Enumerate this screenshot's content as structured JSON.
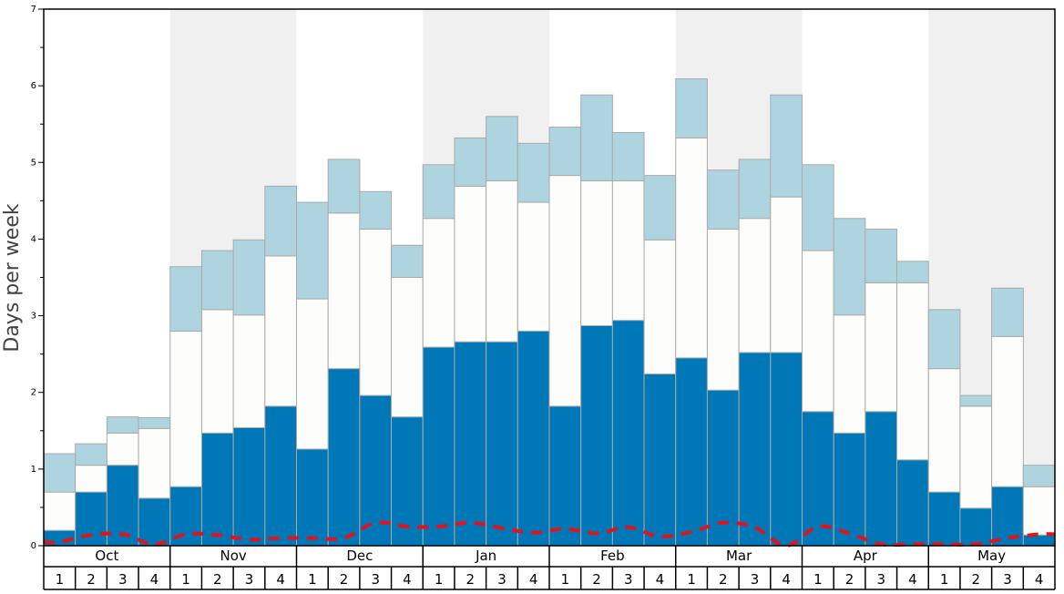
{
  "chart_data": {
    "type": "bar",
    "stacked": true,
    "title": "",
    "xlabel": "",
    "ylabel": "Days per week",
    "ylim": [
      0,
      7
    ],
    "y_ticks": [
      0,
      1,
      2,
      3,
      4,
      5,
      6,
      7
    ],
    "grid": false,
    "months": [
      "Oct",
      "Nov",
      "Dec",
      "Jan",
      "Feb",
      "Mar",
      "Apr",
      "May"
    ],
    "week_labels": [
      "1",
      "2",
      "3",
      "4"
    ],
    "categories": [
      "Oct 1",
      "Oct 2",
      "Oct 3",
      "Oct 4",
      "Nov 1",
      "Nov 2",
      "Nov 3",
      "Nov 4",
      "Dec 1",
      "Dec 2",
      "Dec 3",
      "Dec 4",
      "Jan 1",
      "Jan 2",
      "Jan 3",
      "Jan 4",
      "Feb 1",
      "Feb 2",
      "Feb 3",
      "Feb 4",
      "Mar 1",
      "Mar 2",
      "Mar 3",
      "Mar 4",
      "Apr 1",
      "Apr 2",
      "Apr 3",
      "Apr 4",
      "May 1",
      "May 2",
      "May 3",
      "May 4"
    ],
    "series": [
      {
        "color": "#0077b6",
        "values": [
          0.2,
          0.7,
          1.05,
          0.62,
          0.77,
          1.47,
          1.54,
          1.82,
          1.26,
          2.31,
          1.96,
          1.68,
          2.59,
          2.66,
          2.66,
          2.8,
          1.82,
          2.87,
          2.94,
          2.24,
          2.45,
          2.03,
          2.52,
          2.52,
          1.75,
          1.47,
          1.75,
          1.12,
          0.7,
          0.49,
          0.77,
          0.14
        ]
      },
      {
        "color": "#fdfdfb",
        "values": [
          0.5,
          0.35,
          0.42,
          0.91,
          2.03,
          1.61,
          1.47,
          1.96,
          1.96,
          2.03,
          2.17,
          1.82,
          1.68,
          2.03,
          2.1,
          1.68,
          3.01,
          1.89,
          1.82,
          1.75,
          2.87,
          2.1,
          1.75,
          2.03,
          2.1,
          1.54,
          1.68,
          2.31,
          1.61,
          1.33,
          1.96,
          0.63
        ]
      },
      {
        "color": "#aed4e0",
        "values": [
          0.5,
          0.28,
          0.21,
          0.14,
          0.84,
          0.77,
          0.98,
          0.91,
          1.26,
          0.7,
          0.49,
          0.42,
          0.7,
          0.63,
          0.84,
          0.77,
          0.63,
          1.12,
          0.63,
          0.84,
          0.77,
          0.77,
          0.77,
          1.33,
          1.12,
          1.26,
          0.7,
          0.28,
          0.77,
          0.14,
          0.63,
          0.28
        ]
      }
    ],
    "line": {
      "color": "#e3131b",
      "style": "dashed",
      "values": [
        0.05,
        0.14,
        0.15,
        0.02,
        0.15,
        0.14,
        0.08,
        0.1,
        0.1,
        0.1,
        0.3,
        0.25,
        0.25,
        0.3,
        0.23,
        0.17,
        0.22,
        0.16,
        0.24,
        0.12,
        0.18,
        0.3,
        0.24,
        0.0,
        0.25,
        0.16,
        0.02,
        0.02,
        0.02,
        0.02,
        0.1,
        0.15
      ]
    },
    "shaded_months": [
      "Nov",
      "Jan",
      "Mar",
      "May"
    ],
    "colors": {
      "shade": "#f0f0f0",
      "bar_stroke": "#aaaaaa",
      "axis": "#000000"
    }
  }
}
